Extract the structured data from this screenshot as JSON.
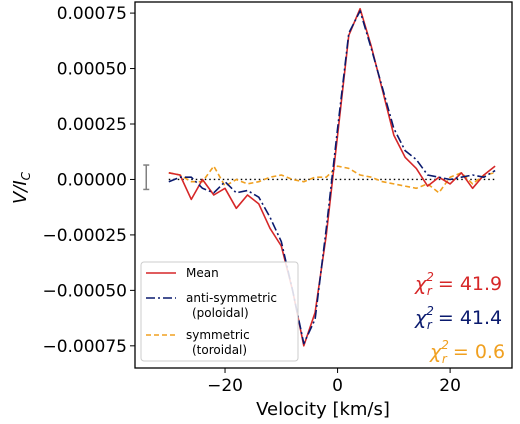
{
  "chart_data": {
    "type": "line",
    "xlabel": "Velocity [km/s]",
    "ylabel_main": "V/I",
    "ylabel_sub": "C",
    "xlim": [
      -36,
      31
    ],
    "ylim": [
      -0.00085,
      0.0008
    ],
    "xticks": [
      -20,
      0,
      20
    ],
    "xtick_labels": [
      "−20",
      "0",
      "20"
    ],
    "yticks": [
      0.00075,
      0.0005,
      0.00025,
      0.0,
      -0.00025,
      -0.0005,
      -0.00075
    ],
    "ytick_labels": [
      "0.00075",
      "0.00050",
      "0.00025",
      "0.00000",
      "−0.00025",
      "−0.00050",
      "−0.00075"
    ],
    "grid": false,
    "legend_position": "lower-left",
    "x": [
      -30,
      -28,
      -26,
      -24,
      -22,
      -20,
      -18,
      -16,
      -14,
      -12,
      -10,
      -8,
      -6,
      -4,
      -2,
      0,
      2,
      4,
      6,
      8,
      10,
      12,
      14,
      16,
      18,
      20,
      22,
      24,
      26,
      28
    ],
    "series": [
      {
        "name": "Mean",
        "color": "#d62728",
        "dash": "solid",
        "values": [
          3e-05,
          2e-05,
          -9e-05,
          0.0,
          -7e-05,
          -4e-05,
          -0.00013,
          -7e-05,
          -0.00011,
          -0.00022,
          -0.0003,
          -0.0005,
          -0.00075,
          -0.0006,
          -0.00025,
          0.0002,
          0.00065,
          0.00077,
          0.0006,
          0.0004,
          0.0002,
          0.0001,
          5e-05,
          -3e-05,
          1e-05,
          -2e-05,
          3e-05,
          -4e-05,
          2e-05,
          6e-05
        ]
      },
      {
        "name_line1": "anti-symmetric",
        "name_line2": "(poloidal)",
        "color": "#0a1a6e",
        "dash": "dashdot",
        "values": [
          -1e-05,
          1e-05,
          1e-05,
          -4e-05,
          -6e-05,
          -1e-05,
          -6e-05,
          -5e-05,
          -8e-05,
          -0.00017,
          -0.00028,
          -0.0005,
          -0.00074,
          -0.00063,
          -0.00022,
          0.00023,
          0.00066,
          0.00076,
          0.00059,
          0.00041,
          0.00023,
          0.00013,
          9e-05,
          2e-05,
          1e-05,
          0.0,
          1e-05,
          2e-05,
          1e-05,
          4e-05
        ]
      },
      {
        "name_line1": "symmetric",
        "name_line2": "(toroidal)",
        "color": "#f0a020",
        "dash": "dashed",
        "values": [
          3e-05,
          2e-05,
          -1e-05,
          -1e-05,
          6e-05,
          -3e-05,
          0.0,
          -2e-05,
          -1e-05,
          1e-05,
          2e-05,
          0.0,
          -1e-05,
          1e-05,
          1e-05,
          6e-05,
          5e-05,
          2e-05,
          1e-05,
          -1e-05,
          -2e-05,
          -3e-05,
          -4e-05,
          -2e-05,
          -6e-05,
          1e-05,
          3e-05,
          -2e-05,
          2e-05,
          3e-05
        ]
      }
    ],
    "reference_line": {
      "y": 0,
      "style": "dotted",
      "color": "#000000"
    },
    "error_bar": {
      "x": -34,
      "y": 1e-05,
      "half_height": 5.5e-05,
      "color": "#808080"
    },
    "annotations": [
      {
        "label": "χ",
        "sub": "r",
        "sup": "2",
        "value": " = 41.9",
        "color": "#d62728"
      },
      {
        "label": "χ",
        "sub": "r",
        "sup": "2",
        "value": " = 41.4",
        "color": "#0a1a6e"
      },
      {
        "label": "χ",
        "sub": "r",
        "sup": "2",
        "value": " = 0.6",
        "color": "#f0a020"
      }
    ]
  }
}
